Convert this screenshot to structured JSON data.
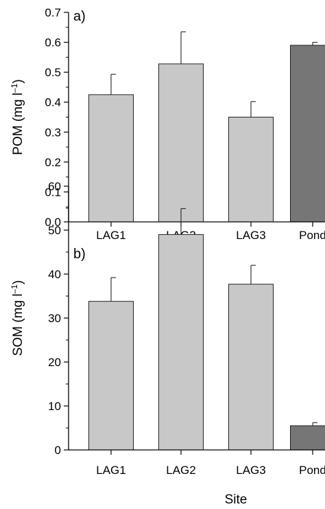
{
  "chart_data": [
    {
      "type": "bar",
      "panel_label": "a)",
      "categories": [
        "LAG1",
        "LAG2",
        "LAG3",
        "Pond"
      ],
      "values": [
        0.425,
        0.528,
        0.35,
        0.59
      ],
      "errors": [
        0.068,
        0.107,
        0.052,
        0.01
      ],
      "bar_colors": [
        "#c8c8c8",
        "#c8c8c8",
        "#c8c8c8",
        "#767676"
      ],
      "ylabel_main": "POM (mg l",
      "ylabel_sup": "–1",
      "ylabel_end": ")",
      "xlabel": "",
      "ylim": [
        0,
        0.7
      ],
      "yticks": [
        "0.0",
        "0.1",
        "0.2",
        "0.3",
        "0.4",
        "0.5",
        "0.6",
        "0.7"
      ],
      "grid": false
    },
    {
      "type": "bar",
      "panel_label": "b)",
      "categories": [
        "LAG1",
        "LAG2",
        "LAG3",
        "Pond"
      ],
      "values": [
        33.8,
        49.0,
        37.7,
        5.5
      ],
      "errors": [
        5.4,
        5.9,
        4.3,
        0.7
      ],
      "bar_colors": [
        "#c8c8c8",
        "#c8c8c8",
        "#c8c8c8",
        "#767676"
      ],
      "ylabel_main": "SOM (mg l",
      "ylabel_sup": "–1",
      "ylabel_end": ")",
      "xlabel": "Site",
      "ylim": [
        0,
        60
      ],
      "yticks": [
        "0",
        "10",
        "20",
        "30",
        "40",
        "50",
        "60"
      ],
      "grid": false
    }
  ]
}
